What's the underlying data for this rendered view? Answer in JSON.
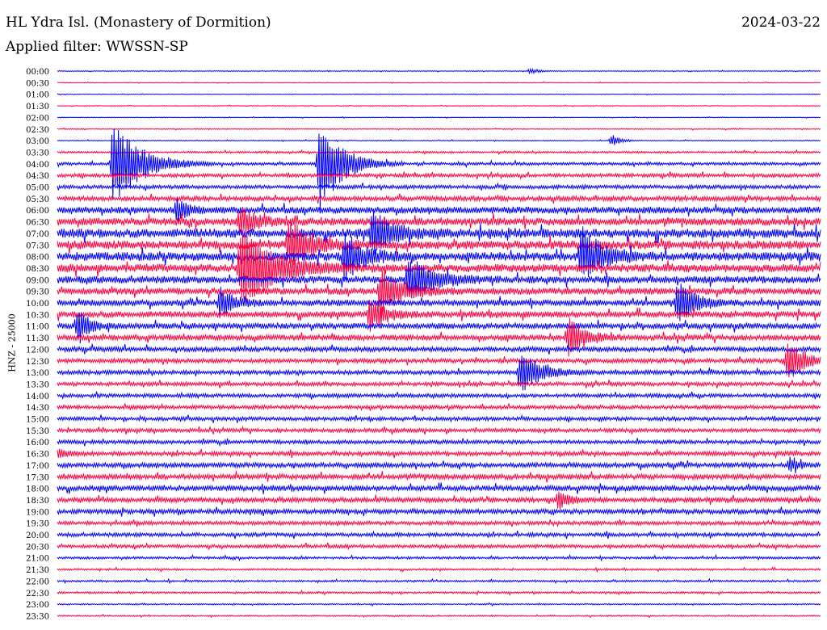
{
  "header": {
    "station": "HL Ydra Isl. (Monastery of Dormition)",
    "date": "2024-03-22",
    "filter": "Applied filter: WWSSN-SP",
    "channel": "HNZ - 25000"
  },
  "colors": {
    "even_row": "#0000ff",
    "odd_row": "#ff0040",
    "text": "#000000"
  },
  "chart_data": {
    "type": "line",
    "title": "HL Ydra Isl. (Monastery of Dormition)",
    "subtitle": "Applied filter: WWSSN-SP",
    "ylabel": "HNZ - 25000",
    "xlabel": "",
    "row_labels": [
      "00:00",
      "00:30",
      "01:00",
      "01:30",
      "02:00",
      "02:30",
      "03:00",
      "03:30",
      "04:00",
      "04:30",
      "05:00",
      "05:30",
      "06:00",
      "06:30",
      "07:00",
      "07:30",
      "08:00",
      "08:30",
      "09:00",
      "09:30",
      "10:00",
      "10:30",
      "11:00",
      "11:30",
      "12:00",
      "12:30",
      "13:00",
      "13:30",
      "14:00",
      "14:30",
      "15:00",
      "15:30",
      "16:00",
      "16:30",
      "17:00",
      "17:30",
      "18:00",
      "18:30",
      "19:00",
      "19:30",
      "20:00",
      "20:30",
      "21:00",
      "21:30",
      "22:00",
      "22:30",
      "23:00",
      "23:30"
    ],
    "minutes_per_row": 30,
    "noise_level": [
      0.3,
      0.3,
      0.3,
      0.3,
      0.3,
      0.4,
      0.4,
      0.8,
      1.2,
      1.5,
      1.6,
      2.0,
      2.8,
      3.2,
      3.8,
      3.6,
      3.6,
      3.4,
      3.0,
      2.8,
      2.6,
      2.6,
      2.4,
      2.4,
      2.0,
      1.8,
      1.8,
      1.6,
      1.6,
      1.6,
      1.6,
      1.6,
      1.6,
      1.8,
      2.0,
      2.2,
      2.2,
      2.0,
      2.0,
      1.6,
      1.6,
      1.4,
      1.0,
      0.8,
      0.8,
      0.8,
      0.6,
      0.6
    ],
    "events": [
      {
        "row": 0,
        "minute": 18.6,
        "amplitude": 4,
        "duration": 0.6
      },
      {
        "row": 6,
        "minute": 21.8,
        "amplitude": 8,
        "duration": 0.6
      },
      {
        "row": 8,
        "minute": 2.2,
        "amplitude": 60,
        "duration": 2.0
      },
      {
        "row": 8,
        "minute": 10.3,
        "amplitude": 70,
        "duration": 1.6
      },
      {
        "row": 12,
        "minute": 4.7,
        "amplitude": 18,
        "duration": 0.8
      },
      {
        "row": 13,
        "minute": 7.2,
        "amplitude": 20,
        "duration": 1.2
      },
      {
        "row": 14,
        "minute": 12.4,
        "amplitude": 30,
        "duration": 1.5
      },
      {
        "row": 15,
        "minute": 9.1,
        "amplitude": 35,
        "duration": 1.6
      },
      {
        "row": 16,
        "minute": 11.3,
        "amplitude": 30,
        "duration": 1.4
      },
      {
        "row": 16,
        "minute": 20.6,
        "amplitude": 35,
        "duration": 1.6
      },
      {
        "row": 17,
        "minute": 7.2,
        "amplitude": 50,
        "duration": 2.6
      },
      {
        "row": 18,
        "minute": 13.8,
        "amplitude": 30,
        "duration": 1.8
      },
      {
        "row": 19,
        "minute": 12.7,
        "amplitude": 30,
        "duration": 1.6
      },
      {
        "row": 20,
        "minute": 6.4,
        "amplitude": 20,
        "duration": 1.0
      },
      {
        "row": 20,
        "minute": 24.4,
        "amplitude": 30,
        "duration": 1.2
      },
      {
        "row": 21,
        "minute": 12.3,
        "amplitude": 20,
        "duration": 1.2
      },
      {
        "row": 22,
        "minute": 0.8,
        "amplitude": 25,
        "duration": 0.8
      },
      {
        "row": 23,
        "minute": 20.1,
        "amplitude": 25,
        "duration": 1.2
      },
      {
        "row": 25,
        "minute": 28.7,
        "amplitude": 25,
        "duration": 1.4
      },
      {
        "row": 26,
        "minute": 18.2,
        "amplitude": 30,
        "duration": 1.4
      },
      {
        "row": 33,
        "minute": 0.1,
        "amplitude": 6,
        "duration": 0.6
      },
      {
        "row": 34,
        "minute": 28.8,
        "amplitude": 10,
        "duration": 0.6
      },
      {
        "row": 37,
        "minute": 19.7,
        "amplitude": 12,
        "duration": 0.8
      }
    ]
  }
}
